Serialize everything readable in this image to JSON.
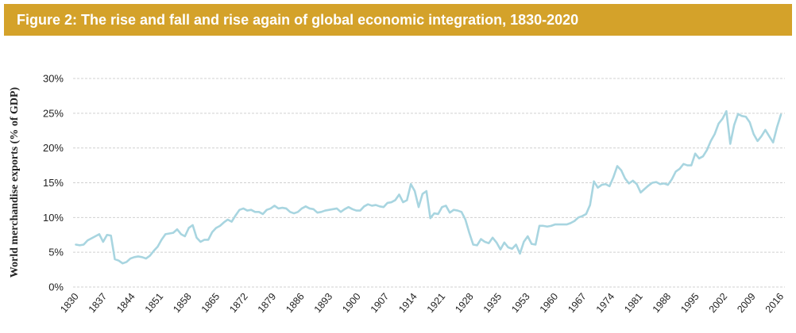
{
  "header": {
    "title": "Figure 2: The rise and fall and rise again of global economic integration, 1830-2020"
  },
  "colors": {
    "banner": "#d4a22a",
    "banner_text": "#ffffff",
    "line": "#a8d5e0",
    "grid": "#d0d0d0"
  },
  "chart_data": {
    "type": "line",
    "xlabel": "",
    "ylabel": "World merchandise exports (% of GDP)",
    "xlim": [
      1830,
      2016
    ],
    "ylim": [
      0,
      30
    ],
    "yticks": [
      {
        "value": 0,
        "label": "0%"
      },
      {
        "value": 5,
        "label": "5%"
      },
      {
        "value": 10,
        "label": "10%"
      },
      {
        "value": 15,
        "label": "15%"
      },
      {
        "value": 20,
        "label": "20%"
      },
      {
        "value": 25,
        "label": "25%"
      },
      {
        "value": 30,
        "label": "30%"
      }
    ],
    "xticks": [
      "1830",
      "1837",
      "1844",
      "1851",
      "1858",
      "1865",
      "1872",
      "1879",
      "1886",
      "1893",
      "1900",
      "1907",
      "1914",
      "1921",
      "1928",
      "1935",
      "1953",
      "1960",
      "1967",
      "1974",
      "1981",
      "1988",
      "1995",
      "2002",
      "2009",
      "2016"
    ],
    "grid": true,
    "legend": "none",
    "series": [
      {
        "values": [
          6.1,
          6.0,
          6.1,
          6.7,
          7.0,
          7.3,
          7.6,
          6.5,
          7.5,
          7.4,
          4.0,
          3.8,
          3.4,
          3.6,
          4.1,
          4.3,
          4.4,
          4.3,
          4.1,
          4.5,
          5.2,
          5.8,
          6.8,
          7.6,
          7.7,
          7.8,
          8.3,
          7.6,
          7.3,
          8.5,
          8.9,
          7.1,
          6.5,
          6.8,
          6.8,
          7.9,
          8.5,
          8.8,
          9.3,
          9.7,
          9.4,
          10.3,
          11.1,
          11.3,
          11.0,
          11.1,
          10.8,
          10.8,
          10.5,
          11.1,
          11.3,
          11.7,
          11.3,
          11.4,
          11.3,
          10.8,
          10.6,
          10.8,
          11.3,
          11.6,
          11.3,
          11.2,
          10.7,
          10.8,
          11.0,
          11.1,
          11.2,
          11.3,
          10.8,
          11.2,
          11.5,
          11.2,
          11.0,
          11.0,
          11.6,
          11.9,
          11.7,
          11.8,
          11.6,
          11.5,
          12.1,
          12.2,
          12.5,
          13.3,
          12.2,
          12.5,
          14.8,
          13.8,
          11.5,
          13.4,
          13.8,
          9.9,
          10.6,
          10.5,
          11.5,
          11.7,
          10.7,
          11.1,
          11.0,
          10.8,
          9.7,
          7.8,
          6.1,
          6.0,
          6.9,
          6.5,
          6.3,
          7.1,
          6.4,
          5.4,
          6.4,
          5.7,
          5.5,
          6.1,
          4.8,
          6.5,
          7.3,
          6.2,
          6.1,
          8.8,
          8.8,
          8.7,
          8.8,
          9.0,
          9.0,
          9.0,
          9.0,
          9.2,
          9.5,
          10.0,
          10.2,
          10.5,
          11.8,
          15.2,
          14.3,
          14.7,
          14.8,
          14.5,
          15.8,
          17.4,
          16.8,
          15.6,
          14.9,
          15.3,
          14.8,
          13.6,
          14.1,
          14.6,
          15.0,
          15.1,
          14.8,
          14.9,
          14.7,
          15.5,
          16.6,
          17.0,
          17.7,
          17.5,
          17.5,
          19.2,
          18.5,
          18.8,
          19.7,
          21.0,
          22.0,
          23.5,
          24.2,
          25.3,
          20.6,
          23.3,
          24.9,
          24.6,
          24.5,
          23.7,
          22.0,
          21.0,
          21.7,
          22.6,
          21.7,
          20.8,
          23.0,
          24.8
        ]
      }
    ]
  }
}
